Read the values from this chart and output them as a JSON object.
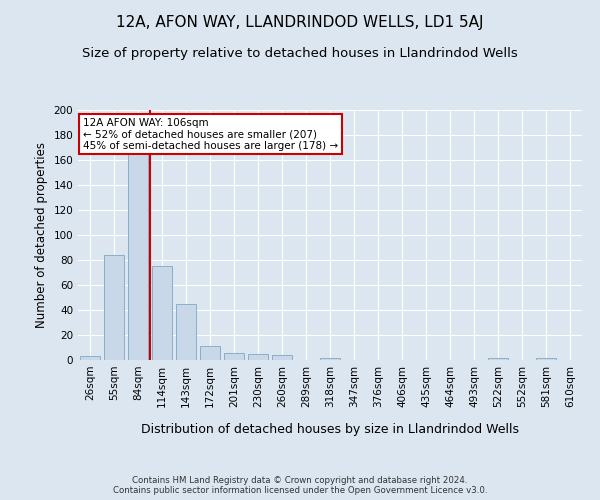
{
  "title": "12A, AFON WAY, LLANDRINDOD WELLS, LD1 5AJ",
  "subtitle": "Size of property relative to detached houses in Llandrindod Wells",
  "xlabel": "Distribution of detached houses by size in Llandrindod Wells",
  "ylabel": "Number of detached properties",
  "footnote": "Contains HM Land Registry data © Crown copyright and database right 2024.\nContains public sector information licensed under the Open Government Licence v3.0.",
  "bin_labels": [
    "26sqm",
    "55sqm",
    "84sqm",
    "114sqm",
    "143sqm",
    "172sqm",
    "201sqm",
    "230sqm",
    "260sqm",
    "289sqm",
    "318sqm",
    "347sqm",
    "376sqm",
    "406sqm",
    "435sqm",
    "464sqm",
    "493sqm",
    "522sqm",
    "552sqm",
    "581sqm",
    "610sqm"
  ],
  "bar_values": [
    3,
    84,
    165,
    75,
    45,
    11,
    6,
    5,
    4,
    0,
    2,
    0,
    0,
    0,
    0,
    0,
    0,
    2,
    0,
    2,
    0
  ],
  "bar_color": "#c8d8e8",
  "bar_edge_color": "#8aafc8",
  "vline_x": 2.5,
  "vline_color": "#cc0000",
  "annotation_text": "12A AFON WAY: 106sqm\n← 52% of detached houses are smaller (207)\n45% of semi-detached houses are larger (178) →",
  "annotation_box_color": "#ffffff",
  "annotation_box_edge": "#cc0000",
  "ylim": [
    0,
    200
  ],
  "yticks": [
    0,
    20,
    40,
    60,
    80,
    100,
    120,
    140,
    160,
    180,
    200
  ],
  "bg_color": "#dce6f0",
  "plot_bg_color": "#dce6f0",
  "title_fontsize": 11,
  "subtitle_fontsize": 9.5,
  "xlabel_fontsize": 9,
  "ylabel_fontsize": 8.5,
  "tick_fontsize": 7.5,
  "footnote_fontsize": 6.2
}
